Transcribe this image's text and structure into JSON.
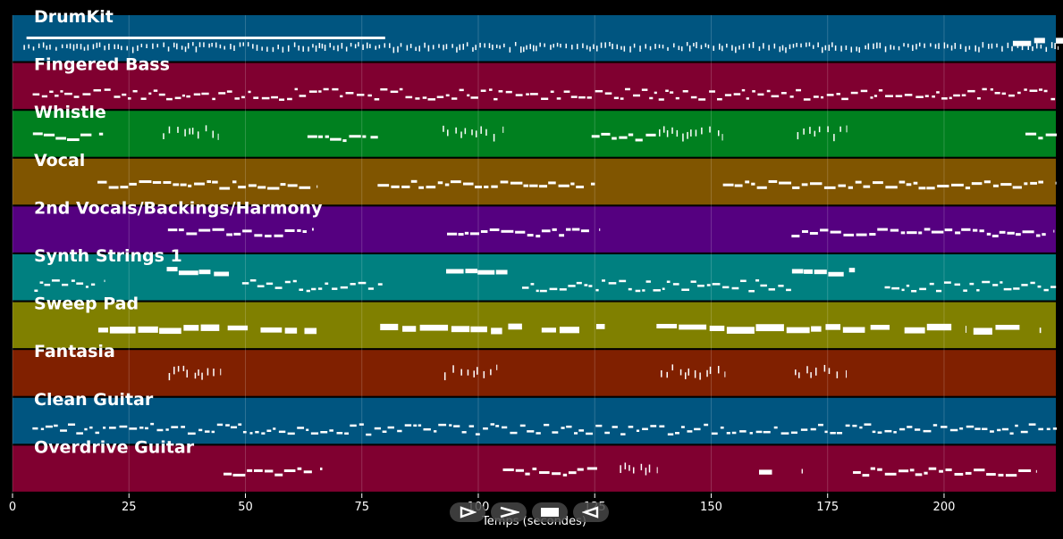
{
  "chart_data": {
    "type": "piano-roll",
    "xlabel": "Temps (secondes)",
    "xlim": [
      0,
      224
    ],
    "xticks": [
      0,
      25,
      50,
      75,
      100,
      125,
      150,
      175,
      200
    ],
    "grid": true,
    "tracks": [
      {
        "name": "DrumKit",
        "color": "#005580",
        "segments": [
          [
            2,
            224,
            "tiny"
          ],
          [
            3,
            80,
            "bar"
          ],
          [
            214,
            224,
            "thick"
          ]
        ]
      },
      {
        "name": "Fingered Bass",
        "color": "#800030",
        "segments": [
          [
            4,
            224,
            "dense"
          ]
        ]
      },
      {
        "name": "Whistle",
        "color": "#00801f",
        "segments": [
          [
            4,
            18,
            "phrase"
          ],
          [
            32,
            44,
            "sparse"
          ],
          [
            63,
            78,
            "phrase"
          ],
          [
            92,
            104,
            "sparse"
          ],
          [
            124,
            138,
            "phrase"
          ],
          [
            138,
            152,
            "sparse"
          ],
          [
            167,
            178,
            "sparse"
          ],
          [
            217,
            224,
            "phrase"
          ]
        ]
      },
      {
        "name": "Vocal",
        "color": "#805500",
        "segments": [
          [
            18,
            64,
            "phrase"
          ],
          [
            78,
            124,
            "phrase"
          ],
          [
            152,
            222,
            "phrase"
          ]
        ]
      },
      {
        "name": "2nd Vocals/Backings/Harmony",
        "color": "#550080",
        "segments": [
          [
            33,
            64,
            "phrase"
          ],
          [
            93,
            124,
            "phrase"
          ],
          [
            167,
            222,
            "phrase"
          ]
        ]
      },
      {
        "name": "Synth Strings 1",
        "color": "#008080",
        "segments": [
          [
            4,
            18,
            "dense"
          ],
          [
            33,
            46,
            "chunky"
          ],
          [
            49,
            79,
            "dense"
          ],
          [
            93,
            106,
            "chunky"
          ],
          [
            109,
            140,
            "dense"
          ],
          [
            140,
            167,
            "dense"
          ],
          [
            167,
            180,
            "chunky"
          ],
          [
            187,
            224,
            "dense"
          ]
        ]
      },
      {
        "name": "Sweep Pad",
        "color": "#808000",
        "segments": [
          [
            18,
            49,
            "thick"
          ],
          [
            53,
            64,
            "thick"
          ],
          [
            78,
            109,
            "thick"
          ],
          [
            113,
            124,
            "thick"
          ],
          [
            138,
            188,
            "thick"
          ],
          [
            191,
            202,
            "thick"
          ],
          [
            206,
            217,
            "thick"
          ]
        ]
      },
      {
        "name": "Fantasia",
        "color": "#802000",
        "segments": [
          [
            33,
            44,
            "sparse"
          ],
          [
            92,
            104,
            "sparse"
          ],
          [
            138,
            152,
            "sparse"
          ],
          [
            167,
            178,
            "sparse"
          ]
        ]
      },
      {
        "name": "Clean Guitar",
        "color": "#005580",
        "segments": [
          [
            4,
            224,
            "dense"
          ]
        ]
      },
      {
        "name": "Overdrive Guitar",
        "color": "#800030",
        "segments": [
          [
            45,
            65,
            "phrase"
          ],
          [
            105,
            125,
            "phrase"
          ],
          [
            130,
            137,
            "sparse"
          ],
          [
            160,
            164,
            "thick"
          ],
          [
            180,
            219,
            "phrase"
          ]
        ]
      }
    ]
  },
  "controls": [
    {
      "name": "play-button",
      "icon": "play-icon"
    },
    {
      "name": "forward-button",
      "icon": "forward-icon"
    },
    {
      "name": "stop-button",
      "icon": "stop-icon"
    },
    {
      "name": "back-button",
      "icon": "back-icon"
    }
  ]
}
